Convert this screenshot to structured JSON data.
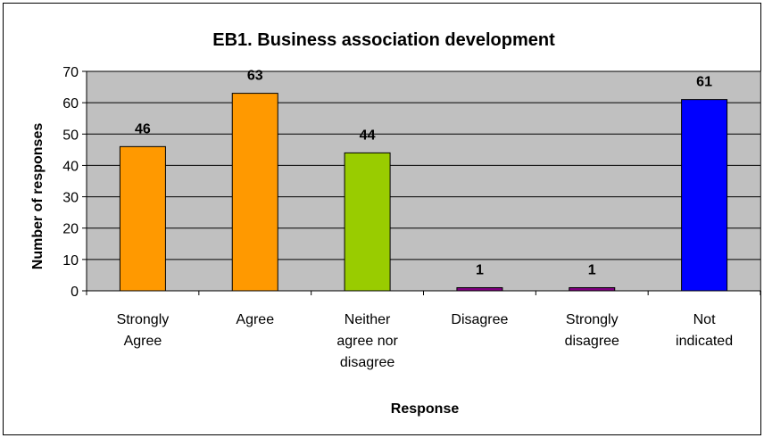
{
  "chart_data": {
    "type": "bar",
    "title": "EB1. Business association development",
    "xlabel": "Response",
    "ylabel": "Number of responses",
    "ylim": [
      0,
      70
    ],
    "yticks": [
      0,
      10,
      20,
      30,
      40,
      50,
      60,
      70
    ],
    "grid": true,
    "legend": "none",
    "plot_background": "#c0c0c0",
    "categories": [
      [
        "Strongly",
        "Agree"
      ],
      [
        "Agree"
      ],
      [
        "Neither",
        "agree nor",
        "disagree"
      ],
      [
        "Disagree"
      ],
      [
        "Strongly",
        "disagree"
      ],
      [
        "Not",
        "indicated"
      ]
    ],
    "values": [
      46,
      63,
      44,
      1,
      1,
      61
    ],
    "data_labels": [
      "46",
      "63",
      "44",
      "1",
      "1",
      "61"
    ],
    "colors": [
      "#ff9900",
      "#ff9900",
      "#99cc00",
      "#800080",
      "#800080",
      "#0000ff"
    ]
  }
}
